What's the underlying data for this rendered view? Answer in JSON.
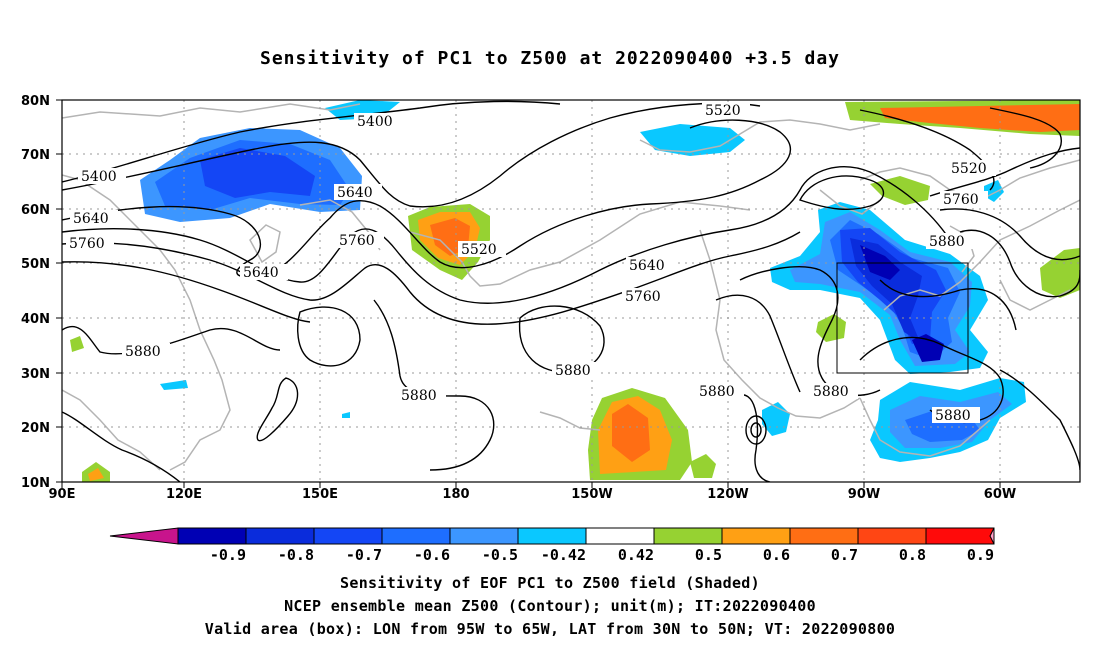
{
  "title": "Sensitivity of PC1 to Z500 at 2022090400 +3.5 day",
  "lat_labels": [
    "80N",
    "70N",
    "60N",
    "50N",
    "40N",
    "30N",
    "20N",
    "10N"
  ],
  "lon_labels": [
    "90E",
    "120E",
    "150E",
    "180",
    "150W",
    "120W",
    "90W",
    "60W"
  ],
  "contour_labels": [
    {
      "text": "5400"
    },
    {
      "text": "5400"
    },
    {
      "text": "5520"
    },
    {
      "text": "5520"
    },
    {
      "text": "5520"
    },
    {
      "text": "5640"
    },
    {
      "text": "5640"
    },
    {
      "text": "5640"
    },
    {
      "text": "5640"
    },
    {
      "text": "5760"
    },
    {
      "text": "5760"
    },
    {
      "text": "5760"
    },
    {
      "text": "5760"
    },
    {
      "text": "5880"
    },
    {
      "text": "5880"
    },
    {
      "text": "5880"
    },
    {
      "text": "5880"
    },
    {
      "text": "5880"
    },
    {
      "text": "5880"
    }
  ],
  "colorbar": {
    "colors": [
      "#0000b4",
      "#0a2cdc",
      "#1446f5",
      "#1e6eff",
      "#3c96ff",
      "#0ac8ff",
      "#ffffff",
      "#96d232",
      "#ffa014",
      "#ff6e14",
      "#ff4614",
      "#ff0a0a"
    ],
    "under_color": "#c8148c",
    "over_color": "#ffa0c8",
    "labels": [
      "-0.9",
      "-0.8",
      "-0.7",
      "-0.6",
      "-0.5",
      "-0.42",
      "0.42",
      "0.5",
      "0.6",
      "0.7",
      "0.8",
      "0.9"
    ]
  },
  "caption_lines": [
    "Sensitivity of EOF PC1 to Z500 field (Shaded)",
    "NCEP ensemble mean Z500 (Contour); unit(m); IT:2022090400",
    "Valid area (box): LON from 95W to 65W, LAT from 30N to 50N; VT: 2022090800"
  ]
}
